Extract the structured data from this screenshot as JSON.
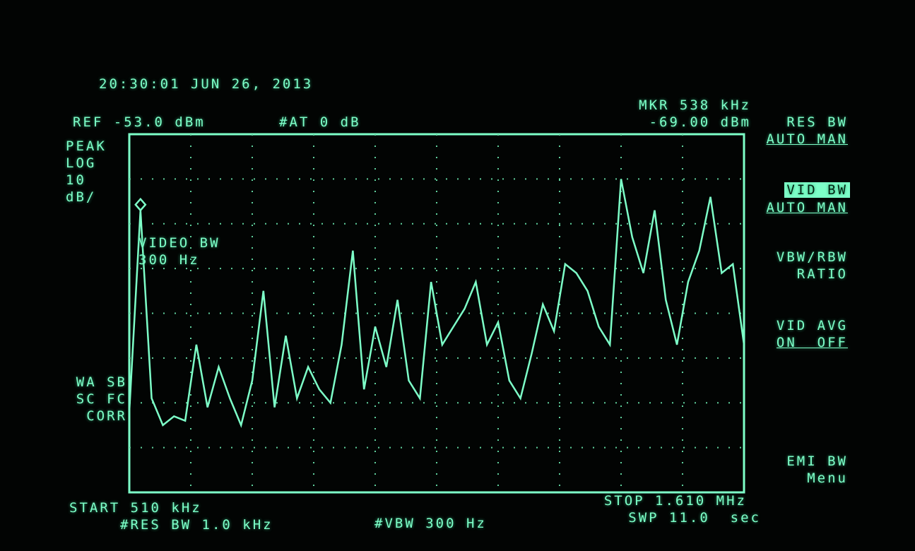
{
  "header": {
    "timestamp": "20:30:01 JUN 26, 2013",
    "ref": "REF -53.0 dBm",
    "atten": "#AT 0 dB",
    "marker_freq": "MKR 538 kHz",
    "marker_level": "-69.00 dBm"
  },
  "scale_labels": [
    "PEAK",
    "LOG",
    "10",
    "dB/"
  ],
  "status_labels": [
    "WA SB",
    "SC FC",
    "CORR"
  ],
  "annotation": [
    "VIDEO BW",
    "300 Hz"
  ],
  "footer": {
    "start": "START 510 kHz",
    "res_bw": "#RES BW 1.0 kHz",
    "vbw": "#VBW 300 Hz",
    "stop": "STOP 1.610 MHz",
    "sweep": "SWP 11.0  sec"
  },
  "softkeys": [
    {
      "lines": [
        "RES BW",
        "AUTO MAN"
      ]
    },
    {
      "lines": [
        "VID BW",
        "AUTO MAN"
      ]
    },
    {
      "lines": [
        "VBW/RBW",
        "RATIO"
      ]
    },
    {
      "lines": [
        "VID AVG",
        "ON  OFF"
      ]
    },
    {
      "lines": [
        "EMI BW",
        "Menu"
      ]
    }
  ],
  "chart_data": {
    "type": "line",
    "xlim": [
      510,
      1610
    ],
    "ylim": [
      -133,
      -53
    ],
    "color": "#7dffc8",
    "x": [
      510,
      530,
      550,
      570,
      590,
      610,
      630,
      650,
      670,
      690,
      710,
      730,
      750,
      770,
      790,
      810,
      830,
      850,
      870,
      890,
      910,
      930,
      950,
      970,
      990,
      1010,
      1030,
      1050,
      1070,
      1090,
      1110,
      1130,
      1150,
      1170,
      1190,
      1210,
      1230,
      1250,
      1270,
      1290,
      1310,
      1330,
      1350,
      1370,
      1390,
      1410,
      1430,
      1450,
      1470,
      1490,
      1510,
      1530,
      1550,
      1570,
      1590,
      1610
    ],
    "values": [
      -115,
      -70,
      -112,
      -118,
      -116,
      -117,
      -100,
      -114,
      -105,
      -112,
      -118,
      -108,
      -88,
      -114,
      -98,
      -112,
      -105,
      -110,
      -113,
      -100,
      -79,
      -110,
      -96,
      -105,
      -90,
      -108,
      -112,
      -86,
      -100,
      -96,
      -92,
      -86,
      -100,
      -95,
      -108,
      -112,
      -102,
      -91,
      -97,
      -82,
      -84,
      -88,
      -96,
      -100,
      -63,
      -76,
      -84,
      -70,
      -90,
      -100,
      -86,
      -79,
      -67,
      -84,
      -82,
      -100
    ]
  }
}
